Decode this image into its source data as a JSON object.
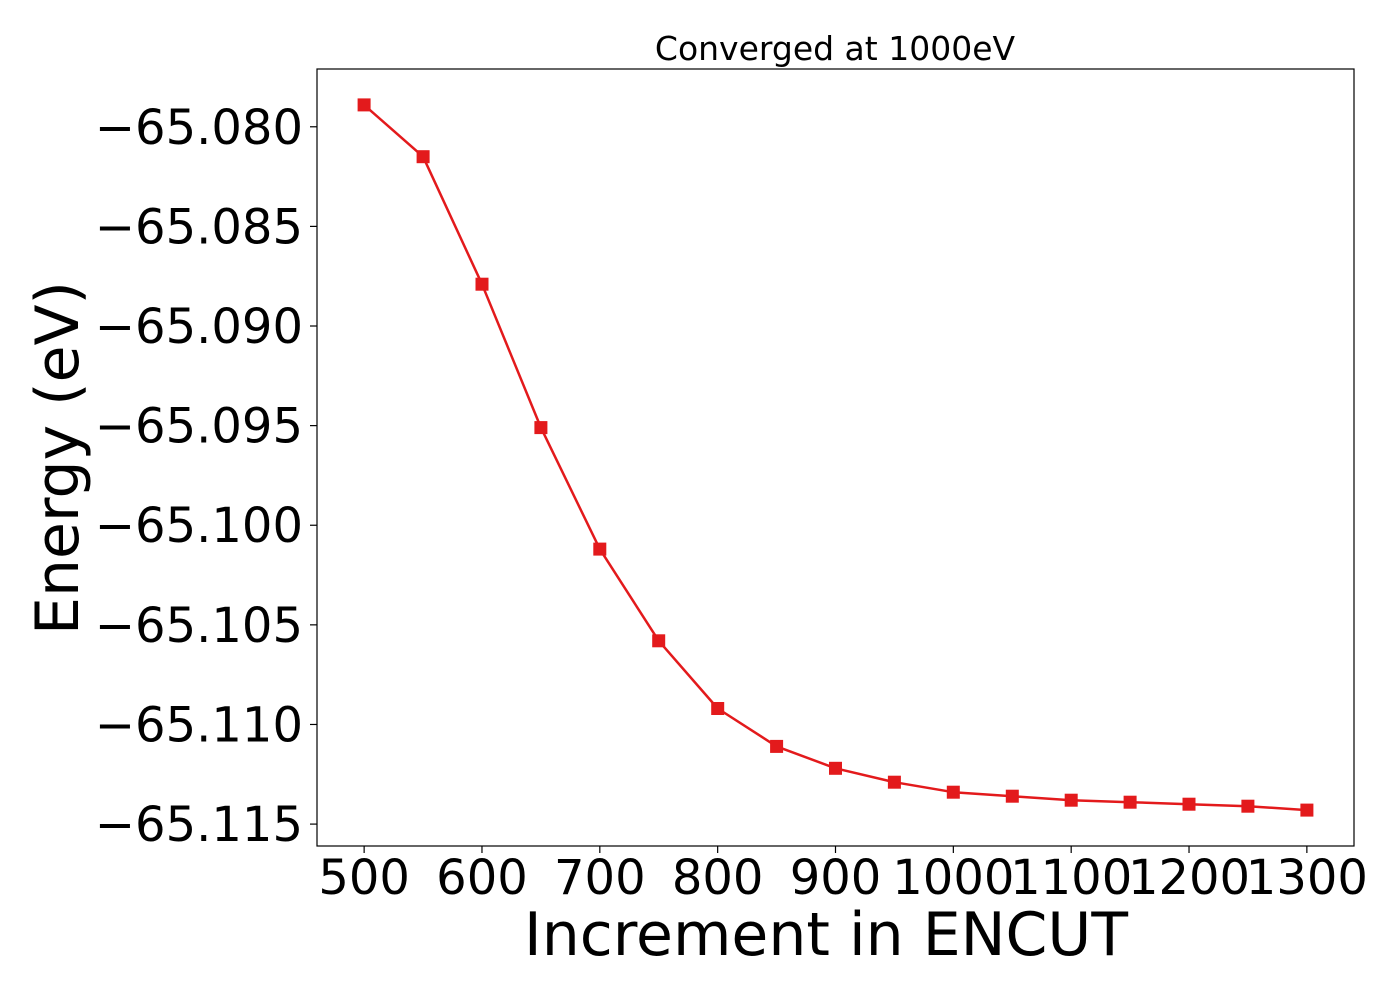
{
  "chart_data": {
    "type": "line",
    "title": "Converged at 1000eV",
    "xlabel": "Increment in ENCUT",
    "ylabel": "Energy (eV)",
    "x": [
      500,
      550,
      600,
      650,
      700,
      750,
      800,
      850,
      900,
      950,
      1000,
      1050,
      1100,
      1150,
      1200,
      1250,
      1300
    ],
    "series": [
      {
        "values": [
          -65.0789,
          -65.0815,
          -65.0879,
          -65.0951,
          -65.1012,
          -65.1058,
          -65.1092,
          -65.1111,
          -65.1122,
          -65.1129,
          -65.1134,
          -65.1136,
          -65.1138,
          -65.1139,
          -65.114,
          -65.1141,
          -65.1143
        ],
        "color": "#e31a1c",
        "marker": "square"
      }
    ],
    "xticks": [
      500,
      600,
      700,
      800,
      900,
      1000,
      1100,
      1200,
      1300
    ],
    "xtick_labels": [
      "500",
      "600",
      "700",
      "800",
      "900",
      "1000",
      "1100",
      "1200",
      "1300"
    ],
    "yticks": [
      -65.08,
      -65.085,
      -65.09,
      -65.095,
      -65.1,
      -65.105,
      -65.11,
      -65.115
    ],
    "ytick_labels": [
      "−65.080",
      "−65.085",
      "−65.090",
      "−65.095",
      "−65.100",
      "−65.105",
      "−65.110",
      "−65.115"
    ],
    "xlim": [
      460,
      1340
    ],
    "ylim": [
      -65.1161,
      -65.0771
    ],
    "grid": false,
    "legend": "none"
  }
}
